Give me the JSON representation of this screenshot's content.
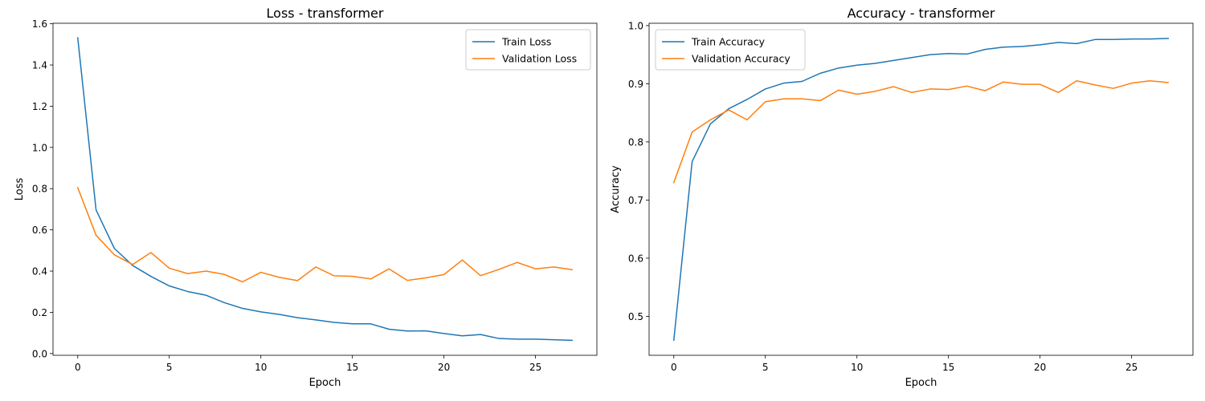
{
  "chart_data": [
    {
      "type": "line",
      "title": "Loss - transformer",
      "xlabel": "Epoch",
      "ylabel": "Loss",
      "xlim": [
        -1.35,
        28.35
      ],
      "ylim": [
        -0.0085,
        1.6025
      ],
      "xticks": [
        0,
        5,
        10,
        15,
        20,
        25
      ],
      "yticks": [
        0.0,
        0.2,
        0.4,
        0.6,
        0.8,
        1.0,
        1.2,
        1.4,
        1.6
      ],
      "ytick_labels": [
        "0.0",
        "0.2",
        "0.4",
        "0.6",
        "0.8",
        "1.0",
        "1.2",
        "1.4",
        "1.6"
      ],
      "legend_loc": "upper right",
      "x": [
        0,
        1,
        2,
        3,
        4,
        5,
        6,
        7,
        8,
        9,
        10,
        11,
        12,
        13,
        14,
        15,
        16,
        17,
        18,
        19,
        20,
        21,
        22,
        23,
        24,
        25,
        26,
        27
      ],
      "series": [
        {
          "name": "Train Loss",
          "color": "#1f77b4",
          "values": [
            1.532,
            0.697,
            0.51,
            0.427,
            0.374,
            0.328,
            0.301,
            0.283,
            0.247,
            0.219,
            0.202,
            0.19,
            0.174,
            0.163,
            0.151,
            0.144,
            0.144,
            0.118,
            0.109,
            0.11,
            0.097,
            0.086,
            0.092,
            0.073,
            0.07,
            0.07,
            0.067,
            0.064
          ]
        },
        {
          "name": "Validation Loss",
          "color": "#ff7f0e",
          "values": [
            0.805,
            0.574,
            0.479,
            0.432,
            0.49,
            0.414,
            0.388,
            0.4,
            0.384,
            0.348,
            0.394,
            0.37,
            0.354,
            0.42,
            0.377,
            0.375,
            0.362,
            0.411,
            0.355,
            0.367,
            0.383,
            0.454,
            0.378,
            0.408,
            0.442,
            0.411,
            0.42,
            0.407
          ]
        }
      ]
    },
    {
      "type": "line",
      "title": "Accuracy - transformer",
      "xlabel": "Epoch",
      "ylabel": "Accuracy",
      "xlim": [
        -1.35,
        28.35
      ],
      "ylim": [
        0.433,
        1.004
      ],
      "xticks": [
        0,
        5,
        10,
        15,
        20,
        25
      ],
      "yticks": [
        0.5,
        0.6,
        0.7,
        0.8,
        0.9,
        1.0
      ],
      "ytick_labels": [
        "0.5",
        "0.6",
        "0.7",
        "0.8",
        "0.9",
        "1.0"
      ],
      "legend_loc": "upper left",
      "x": [
        0,
        1,
        2,
        3,
        4,
        5,
        6,
        7,
        8,
        9,
        10,
        11,
        12,
        13,
        14,
        15,
        16,
        17,
        18,
        19,
        20,
        21,
        22,
        23,
        24,
        25,
        26,
        27
      ],
      "series": [
        {
          "name": "Train Accuracy",
          "color": "#1f77b4",
          "values": [
            0.459,
            0.766,
            0.831,
            0.857,
            0.873,
            0.891,
            0.901,
            0.904,
            0.918,
            0.927,
            0.932,
            0.935,
            0.94,
            0.945,
            0.95,
            0.952,
            0.951,
            0.959,
            0.963,
            0.964,
            0.967,
            0.971,
            0.969,
            0.976,
            0.976,
            0.977,
            0.977,
            0.978
          ]
        },
        {
          "name": "Validation Accuracy",
          "color": "#ff7f0e",
          "values": [
            0.73,
            0.817,
            0.838,
            0.855,
            0.838,
            0.869,
            0.874,
            0.874,
            0.871,
            0.889,
            0.882,
            0.887,
            0.895,
            0.885,
            0.891,
            0.89,
            0.896,
            0.888,
            0.903,
            0.899,
            0.899,
            0.885,
            0.905,
            0.898,
            0.892,
            0.901,
            0.905,
            0.902
          ]
        }
      ]
    }
  ]
}
